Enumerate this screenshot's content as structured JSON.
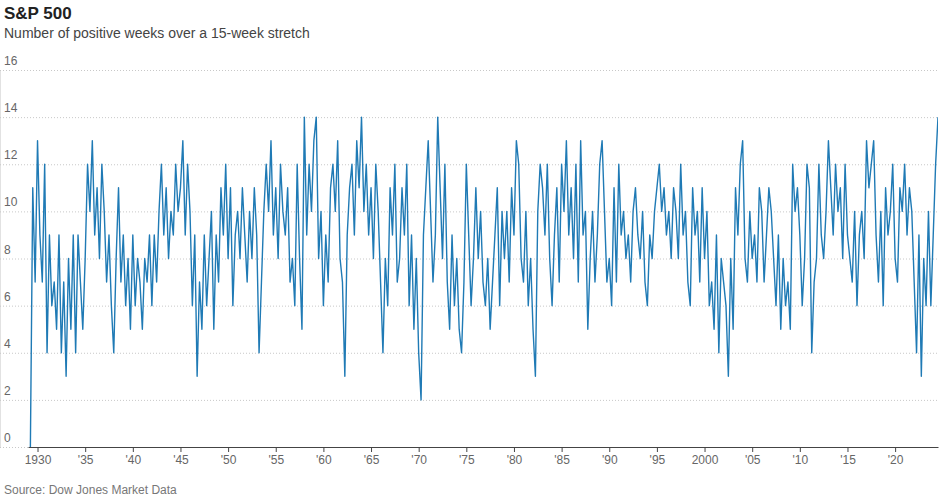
{
  "chart_data": {
    "type": "line",
    "title": "S&P 500",
    "subtitle": "Number of positive weeks over a 15-week stretch",
    "source": "Source: Dow Jones Market Data",
    "color": "#1f7ab5",
    "grid": true,
    "xlim": [
      1929,
      2024.5
    ],
    "xticks": [
      1930,
      {
        "value": 1935,
        "label": "'35"
      },
      {
        "value": 1940,
        "label": "'40"
      },
      {
        "value": 1945,
        "label": "'45"
      },
      {
        "value": 1950,
        "label": "'50"
      },
      {
        "value": 1955,
        "label": "'55"
      },
      {
        "value": 1960,
        "label": "'60"
      },
      {
        "value": 1965,
        "label": "'65"
      },
      {
        "value": 1970,
        "label": "'70"
      },
      {
        "value": 1975,
        "label": "'75"
      },
      {
        "value": 1980,
        "label": "'80"
      },
      {
        "value": 1985,
        "label": "'85"
      },
      {
        "value": 1990,
        "label": "'90"
      },
      {
        "value": 1995,
        "label": "'95"
      },
      2000,
      {
        "value": 2005,
        "label": "'05"
      },
      {
        "value": 2010,
        "label": "'10"
      },
      {
        "value": 2015,
        "label": "'15"
      },
      {
        "value": 2020,
        "label": "'20"
      }
    ],
    "ylim": [
      0,
      16
    ],
    "yticks": [
      0,
      2,
      4,
      6,
      8,
      10,
      12,
      14,
      16
    ],
    "x": [
      1929.25,
      1929.5,
      1929.75,
      1930,
      1930.25,
      1930.5,
      1930.75,
      1931,
      1931.25,
      1931.5,
      1931.75,
      1932,
      1932.25,
      1932.5,
      1932.75,
      1933,
      1933.25,
      1933.5,
      1933.75,
      1934,
      1934.25,
      1934.5,
      1934.75,
      1935,
      1935.25,
      1935.5,
      1935.75,
      1936,
      1936.25,
      1936.5,
      1936.75,
      1937,
      1937.25,
      1937.5,
      1937.75,
      1938,
      1938.25,
      1938.5,
      1938.75,
      1939,
      1939.25,
      1939.5,
      1939.75,
      1940,
      1940.25,
      1940.5,
      1940.75,
      1941,
      1941.25,
      1941.5,
      1941.75,
      1942,
      1942.25,
      1942.5,
      1942.75,
      1943,
      1943.25,
      1943.5,
      1943.75,
      1944,
      1944.25,
      1944.5,
      1944.75,
      1945,
      1945.25,
      1945.5,
      1945.75,
      1946,
      1946.25,
      1946.5,
      1946.75,
      1947,
      1947.25,
      1947.5,
      1947.75,
      1948,
      1948.25,
      1948.5,
      1948.75,
      1949,
      1949.25,
      1949.5,
      1949.75,
      1950,
      1950.25,
      1950.5,
      1950.75,
      1951,
      1951.25,
      1951.5,
      1951.75,
      1952,
      1952.25,
      1952.5,
      1952.75,
      1953,
      1953.25,
      1953.5,
      1953.75,
      1954,
      1954.25,
      1954.5,
      1954.75,
      1955,
      1955.25,
      1955.5,
      1955.75,
      1956,
      1956.25,
      1956.5,
      1956.75,
      1957,
      1957.25,
      1957.5,
      1957.75,
      1958,
      1958.25,
      1958.5,
      1958.75,
      1959,
      1959.25,
      1959.5,
      1959.75,
      1960,
      1960.25,
      1960.5,
      1960.75,
      1961,
      1961.25,
      1961.5,
      1961.75,
      1962,
      1962.25,
      1962.5,
      1962.75,
      1963,
      1963.25,
      1963.5,
      1963.75,
      1964,
      1964.25,
      1964.5,
      1964.75,
      1965,
      1965.25,
      1965.5,
      1965.75,
      1966,
      1966.25,
      1966.5,
      1966.75,
      1967,
      1967.25,
      1967.5,
      1967.75,
      1968,
      1968.25,
      1968.5,
      1968.75,
      1969,
      1969.25,
      1969.5,
      1969.75,
      1970,
      1970.25,
      1970.5,
      1970.75,
      1971,
      1971.25,
      1971.5,
      1971.75,
      1972,
      1972.25,
      1972.5,
      1972.75,
      1973,
      1973.25,
      1973.5,
      1973.75,
      1974,
      1974.25,
      1974.5,
      1974.75,
      1975,
      1975.25,
      1975.5,
      1975.75,
      1976,
      1976.25,
      1976.5,
      1976.75,
      1977,
      1977.25,
      1977.5,
      1977.75,
      1978,
      1978.25,
      1978.5,
      1978.75,
      1979,
      1979.25,
      1979.5,
      1979.75,
      1980,
      1980.25,
      1980.5,
      1980.75,
      1981,
      1981.25,
      1981.5,
      1981.75,
      1982,
      1982.25,
      1982.5,
      1982.75,
      1983,
      1983.25,
      1983.5,
      1983.75,
      1984,
      1984.25,
      1984.5,
      1984.75,
      1985,
      1985.25,
      1985.5,
      1985.75,
      1986,
      1986.25,
      1986.5,
      1986.75,
      1987,
      1987.25,
      1987.5,
      1987.75,
      1988,
      1988.25,
      1988.5,
      1988.75,
      1989,
      1989.25,
      1989.5,
      1989.75,
      1990,
      1990.25,
      1990.5,
      1990.75,
      1991,
      1991.25,
      1991.5,
      1991.75,
      1992,
      1992.25,
      1992.5,
      1992.75,
      1993,
      1993.25,
      1993.5,
      1993.75,
      1994,
      1994.25,
      1994.5,
      1994.75,
      1995,
      1995.25,
      1995.5,
      1995.75,
      1996,
      1996.25,
      1996.5,
      1996.75,
      1997,
      1997.25,
      1997.5,
      1997.75,
      1998,
      1998.25,
      1998.5,
      1998.75,
      1999,
      1999.25,
      1999.5,
      1999.75,
      2000,
      2000.25,
      2000.5,
      2000.75,
      2001,
      2001.25,
      2001.5,
      2001.75,
      2002,
      2002.25,
      2002.5,
      2002.75,
      2003,
      2003.25,
      2003.5,
      2003.75,
      2004,
      2004.25,
      2004.5,
      2004.75,
      2005,
      2005.25,
      2005.5,
      2005.75,
      2006,
      2006.25,
      2006.5,
      2006.75,
      2007,
      2007.25,
      2007.5,
      2007.75,
      2008,
      2008.25,
      2008.5,
      2008.75,
      2009,
      2009.25,
      2009.5,
      2009.75,
      2010,
      2010.25,
      2010.5,
      2010.75,
      2011,
      2011.25,
      2011.5,
      2011.75,
      2012,
      2012.25,
      2012.5,
      2012.75,
      2013,
      2013.25,
      2013.5,
      2013.75,
      2014,
      2014.25,
      2014.5,
      2014.75,
      2015,
      2015.25,
      2015.5,
      2015.75,
      2016,
      2016.25,
      2016.5,
      2016.75,
      2017,
      2017.25,
      2017.5,
      2017.75,
      2018,
      2018.25,
      2018.5,
      2018.75,
      2019,
      2019.25,
      2019.5,
      2019.75,
      2020,
      2020.25,
      2020.5,
      2020.75,
      2021,
      2021.25,
      2021.5,
      2021.75,
      2022,
      2022.25,
      2022.5,
      2022.75,
      2023,
      2023.25,
      2023.5,
      2023.75,
      2024,
      2024.25,
      2024.5
    ],
    "values": [
      0,
      11,
      7,
      13,
      9,
      7,
      12,
      4,
      9,
      6,
      7,
      5,
      9,
      4,
      7,
      3,
      8,
      5,
      9,
      4,
      9,
      7,
      5,
      8,
      12,
      10,
      13,
      9,
      11,
      8,
      12,
      10,
      7,
      9,
      6,
      4,
      8,
      11,
      7,
      9,
      6,
      8,
      5,
      9,
      6,
      8,
      7,
      5,
      8,
      7,
      9,
      6,
      9,
      7,
      10,
      12,
      9,
      11,
      8,
      10,
      9,
      12,
      10,
      11,
      13,
      9,
      12,
      10,
      6,
      9,
      3,
      7,
      5,
      9,
      6,
      8,
      10,
      5,
      9,
      7,
      11,
      9,
      12,
      8,
      11,
      6,
      9,
      10,
      8,
      11,
      9,
      7,
      10,
      8,
      11,
      9,
      4,
      7,
      10,
      12,
      10,
      13,
      9,
      11,
      8,
      12,
      10,
      9,
      11,
      7,
      8,
      6,
      12,
      8,
      5,
      14,
      9,
      12,
      10,
      13,
      14,
      8,
      10,
      6,
      9,
      7,
      11,
      12,
      10,
      13,
      8,
      7,
      3,
      9,
      11,
      12,
      9,
      13,
      11,
      14,
      10,
      12,
      9,
      11,
      8,
      12,
      10,
      7,
      4,
      8,
      6,
      11,
      9,
      12,
      7,
      8,
      11,
      9,
      12,
      6,
      9,
      5,
      8,
      4,
      2,
      9,
      11,
      13,
      10,
      7,
      9,
      14,
      11,
      8,
      12,
      7,
      5,
      9,
      6,
      8,
      5,
      4,
      7,
      12,
      9,
      6,
      8,
      11,
      8,
      10,
      7,
      6,
      8,
      5,
      7,
      9,
      11,
      6,
      10,
      8,
      10,
      7,
      11,
      9,
      13,
      12,
      8,
      7,
      10,
      6,
      8,
      5,
      3,
      10,
      12,
      11,
      9,
      12,
      8,
      6,
      9,
      11,
      7,
      12,
      10,
      13,
      9,
      11,
      8,
      12,
      7,
      13,
      9,
      10,
      5,
      8,
      10,
      7,
      9,
      12,
      13,
      10,
      7,
      8,
      6,
      11,
      7,
      12,
      9,
      10,
      8,
      9,
      7,
      10,
      11,
      9,
      8,
      10,
      7,
      6,
      9,
      8,
      10,
      11,
      12,
      10,
      11,
      9,
      10,
      8,
      11,
      10,
      8,
      12,
      9,
      10,
      7,
      6,
      11,
      9,
      10,
      7,
      11,
      8,
      10,
      6,
      7,
      5,
      9,
      4,
      8,
      7,
      6,
      3,
      8,
      5,
      11,
      9,
      12,
      13,
      8,
      7,
      10,
      8,
      9,
      7,
      11,
      10,
      7,
      9,
      11,
      10,
      8,
      6,
      9,
      5,
      8,
      6,
      7,
      5,
      12,
      10,
      11,
      9,
      6,
      8,
      12,
      11,
      4,
      7,
      8,
      12,
      9,
      8,
      10,
      13,
      11,
      9,
      12,
      10,
      11,
      8,
      12,
      9,
      8,
      7,
      10,
      6,
      9,
      10,
      8,
      13,
      11,
      12,
      13,
      9,
      7,
      10,
      6,
      11,
      9,
      10,
      12,
      8,
      7,
      11,
      10,
      12,
      9,
      11,
      10,
      7,
      4,
      9,
      3,
      8,
      6,
      10,
      6,
      9,
      12,
      14
    ]
  }
}
